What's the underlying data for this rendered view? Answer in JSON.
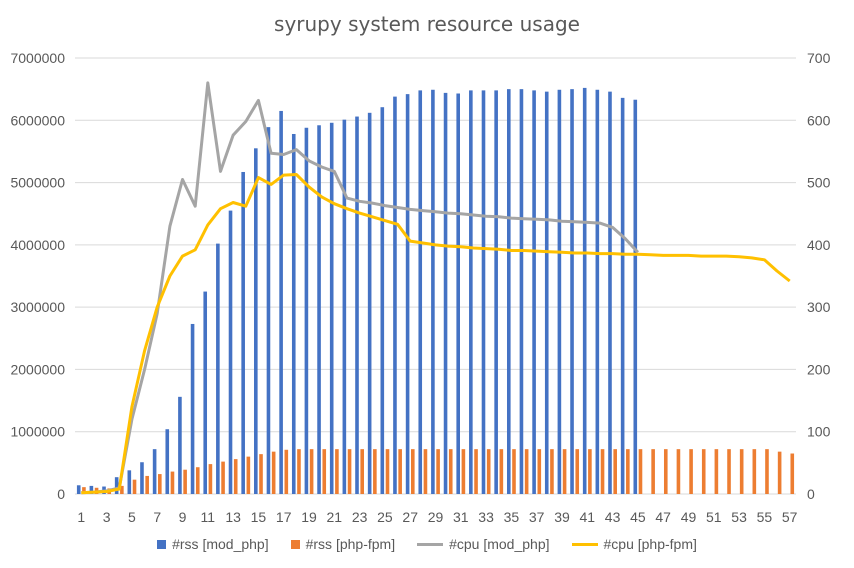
{
  "chart_data": {
    "type": "bar",
    "title": "syrupy system resource usage",
    "x": [
      1,
      2,
      3,
      4,
      5,
      6,
      7,
      8,
      9,
      10,
      11,
      12,
      13,
      14,
      15,
      16,
      17,
      18,
      19,
      20,
      21,
      22,
      23,
      24,
      25,
      26,
      27,
      28,
      29,
      30,
      31,
      32,
      33,
      34,
      35,
      36,
      37,
      38,
      39,
      40,
      41,
      42,
      43,
      44,
      45,
      46,
      47,
      48,
      49,
      50,
      51,
      52,
      53,
      54,
      55,
      56,
      57
    ],
    "x_tick_labels": [
      "1",
      "3",
      "5",
      "7",
      "9",
      "11",
      "13",
      "15",
      "17",
      "19",
      "21",
      "23",
      "25",
      "27",
      "29",
      "31",
      "33",
      "35",
      "37",
      "39",
      "41",
      "43",
      "45",
      "47",
      "49",
      "51",
      "53",
      "55",
      "57"
    ],
    "y_left": {
      "ylim": [
        0,
        7000000
      ],
      "ticks": [
        "0",
        "1000000",
        "2000000",
        "3000000",
        "4000000",
        "5000000",
        "6000000",
        "7000000"
      ]
    },
    "y_right": {
      "ylim": [
        0,
        700
      ],
      "ticks": [
        "0",
        "100",
        "200",
        "300",
        "400",
        "500",
        "600",
        "700"
      ]
    },
    "grid": true,
    "legend_position": "bottom",
    "series": [
      {
        "name": "#rss [mod_php]",
        "kind": "bar",
        "axis": "left",
        "color": "#4472C4",
        "values": [
          140000,
          130000,
          120000,
          270000,
          380000,
          510000,
          720000,
          1040000,
          1560000,
          2730000,
          3250000,
          4020000,
          4550000,
          5170000,
          5550000,
          5890000,
          6150000,
          5780000,
          5880000,
          5920000,
          5960000,
          6010000,
          6060000,
          6120000,
          6210000,
          6380000,
          6420000,
          6480000,
          6490000,
          6440000,
          6430000,
          6480000,
          6480000,
          6480000,
          6500000,
          6500000,
          6480000,
          6460000,
          6490000,
          6500000,
          6520000,
          6490000,
          6460000,
          6360000,
          6330000,
          null,
          null,
          null,
          null,
          null,
          null,
          null,
          null,
          null,
          null,
          null,
          null
        ]
      },
      {
        "name": "#rss [php-fpm]",
        "kind": "bar",
        "axis": "left",
        "color": "#ED7D31",
        "values": [
          110000,
          100000,
          90000,
          130000,
          230000,
          290000,
          320000,
          360000,
          390000,
          430000,
          480000,
          520000,
          560000,
          600000,
          640000,
          680000,
          710000,
          720000,
          720000,
          720000,
          720000,
          720000,
          720000,
          720000,
          720000,
          720000,
          720000,
          720000,
          720000,
          720000,
          720000,
          720000,
          720000,
          720000,
          720000,
          720000,
          720000,
          720000,
          720000,
          720000,
          720000,
          720000,
          720000,
          720000,
          720000,
          720000,
          720000,
          720000,
          720000,
          720000,
          720000,
          720000,
          720000,
          720000,
          720000,
          680000,
          650000
        ]
      },
      {
        "name": "#cpu [mod_php]",
        "kind": "line",
        "axis": "right",
        "color": "#A5A5A5",
        "values": [
          2,
          3,
          5,
          10,
          120,
          200,
          290,
          430,
          505,
          462,
          660,
          518,
          576,
          598,
          632,
          547,
          545,
          553,
          535,
          525,
          518,
          475,
          470,
          467,
          463,
          460,
          457,
          455,
          453,
          451,
          450,
          448,
          446,
          445,
          443,
          442,
          441,
          440,
          438,
          437,
          436,
          435,
          428,
          410,
          388,
          null,
          null,
          null,
          null,
          null,
          null,
          null,
          null,
          null,
          null,
          null,
          null
        ]
      },
      {
        "name": "#cpu [php-fpm]",
        "kind": "line",
        "axis": "right",
        "color": "#FFC000",
        "values": [
          2,
          3,
          4,
          8,
          140,
          230,
          300,
          350,
          382,
          392,
          432,
          458,
          468,
          462,
          508,
          497,
          512,
          513,
          493,
          477,
          466,
          458,
          451,
          445,
          439,
          433,
          406,
          403,
          400,
          398,
          397,
          395,
          394,
          393,
          391,
          391,
          390,
          389,
          388,
          387,
          387,
          386,
          386,
          385,
          385,
          384,
          383,
          383,
          383,
          382,
          382,
          382,
          381,
          379,
          376,
          358,
          342
        ]
      }
    ]
  }
}
